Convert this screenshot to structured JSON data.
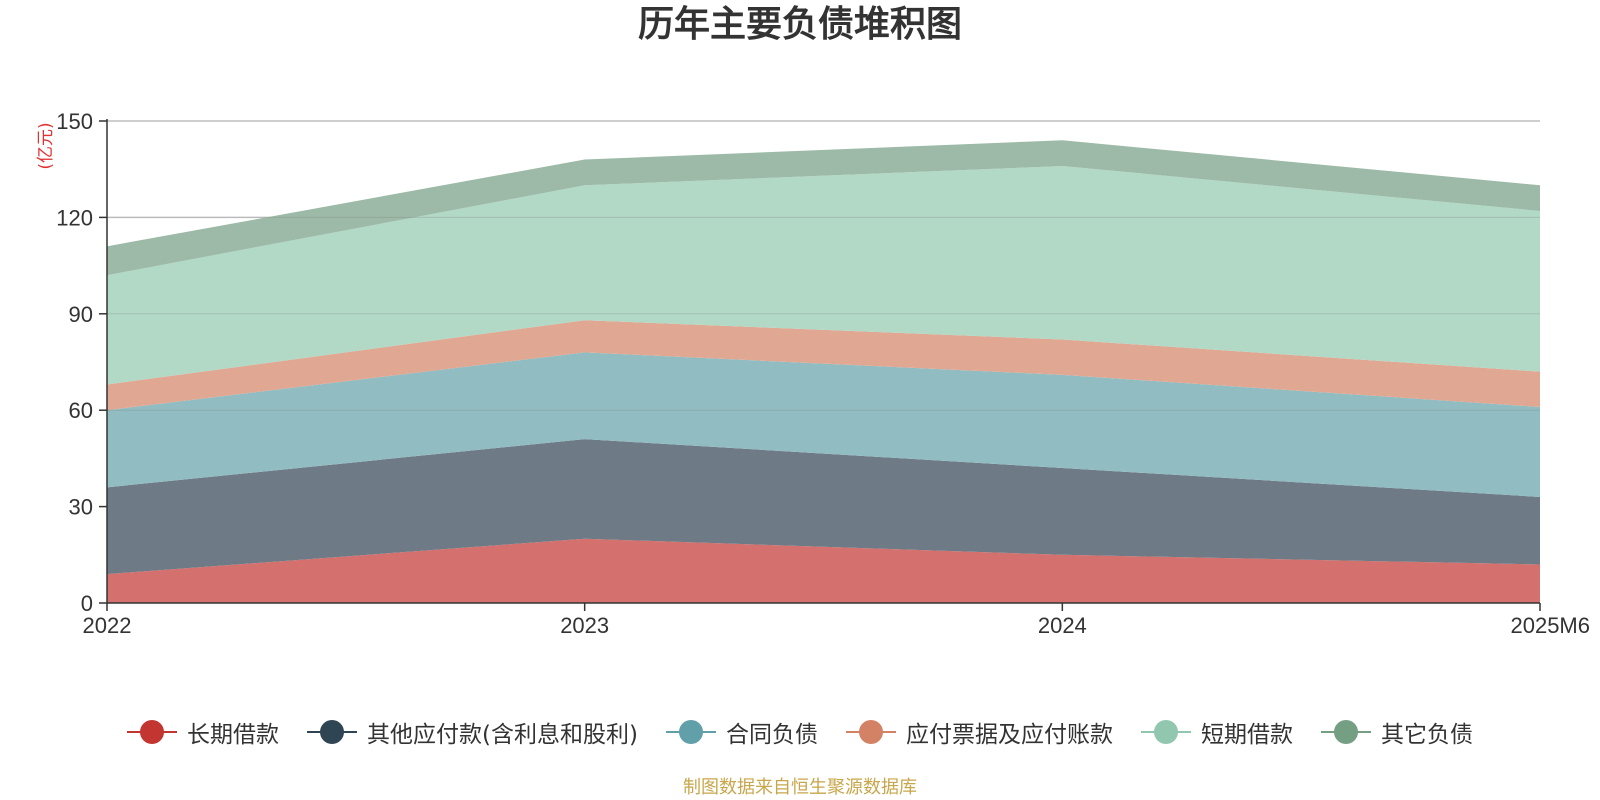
{
  "chart_title": "历年主要负债堆积图",
  "source_note": "制图数据来自恒生聚源数据库",
  "chart_data": {
    "type": "area",
    "stacked": true,
    "title": "历年主要负债堆积图",
    "ylabel": "(亿元)",
    "xlabel": "",
    "categories": [
      "2022",
      "2023",
      "2024",
      "2025M6"
    ],
    "ylim": [
      0,
      150
    ],
    "yticks": [
      0,
      30,
      60,
      90,
      120,
      150
    ],
    "grid": true,
    "legend_position": "bottom",
    "series": [
      {
        "name": "长期借款",
        "values": [
          9,
          20,
          15,
          12
        ],
        "color": "#c23531",
        "fill": "#d4706d"
      },
      {
        "name": "其他应付款(含利息和股利)",
        "values": [
          27,
          31,
          27,
          21
        ],
        "color": "#2f4554",
        "fill": "#6e7b86"
      },
      {
        "name": "合同负债",
        "values": [
          24,
          27,
          29,
          28
        ],
        "color": "#61a0a8",
        "fill": "#91bcc2"
      },
      {
        "name": "应付票据及应付账款",
        "values": [
          8,
          10,
          11,
          11
        ],
        "color": "#d48265",
        "fill": "#e0a892"
      },
      {
        "name": "短期借款",
        "values": [
          34,
          42,
          54,
          50
        ],
        "color": "#91c7ae",
        "fill": "#b2d8c6"
      },
      {
        "name": "其它负债",
        "values": [
          9,
          8,
          8,
          8
        ],
        "color": "#749f83",
        "fill": "#9cbaa7"
      }
    ]
  }
}
